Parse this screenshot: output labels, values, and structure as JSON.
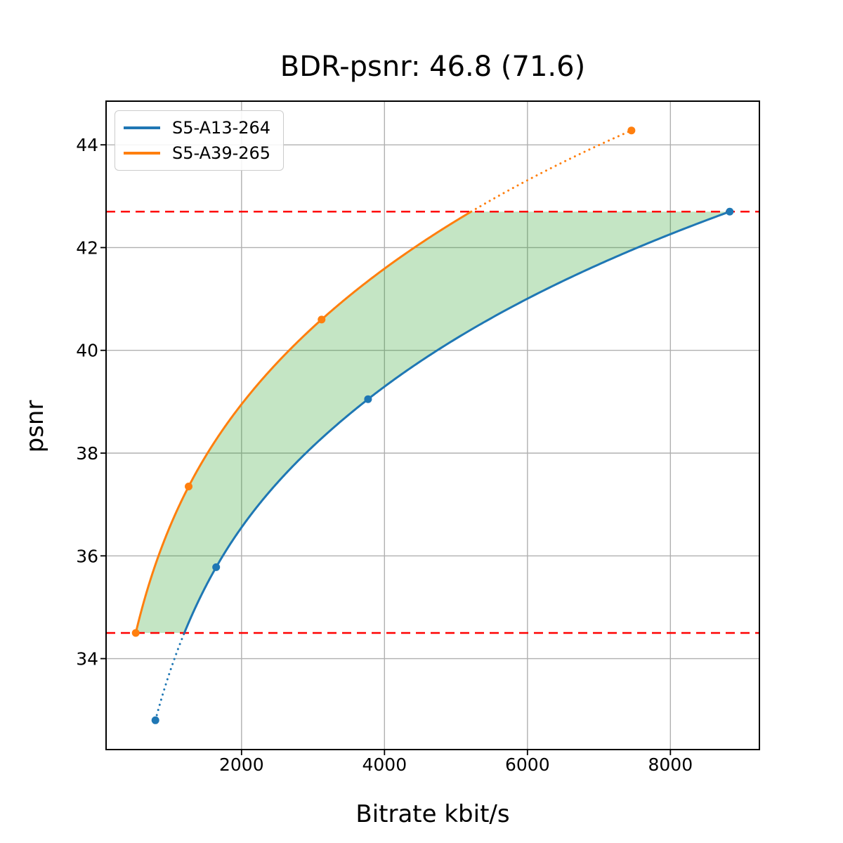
{
  "title": {
    "text": "BDR-psnr: 46.8 (71.6)"
  },
  "legend": {
    "items": [
      {
        "label": "S5-A13-264",
        "color": "#1f77b4"
      },
      {
        "label": "S5-A39-265",
        "color": "#ff7f0e"
      }
    ]
  },
  "chart_data": {
    "type": "line",
    "title": "BDR-psnr: 46.8 (71.6)",
    "xlabel": "Bitrate kbit/s",
    "ylabel": "psnr",
    "xlim": [
      105,
      9245
    ],
    "ylim": [
      32.23,
      44.85
    ],
    "xticks": [
      2000,
      4000,
      6000,
      8000
    ],
    "yticks": [
      34,
      36,
      38,
      40,
      42,
      44
    ],
    "grid": true,
    "grid_color": "#b0b0b0",
    "spine_color": "#000000",
    "legend_position": "upper left",
    "interpolation": "pchip-log-x",
    "series": [
      {
        "name": "S5-A13-264",
        "color": "#1f77b4",
        "marker": "circle",
        "x": [
          795,
          1645,
          3770,
          8830
        ],
        "y": [
          32.8,
          35.78,
          39.05,
          42.7
        ]
      },
      {
        "name": "S5-A39-265",
        "color": "#ff7f0e",
        "marker": "circle",
        "x": [
          520,
          1260,
          3120,
          7455
        ],
        "y": [
          34.5,
          37.35,
          40.6,
          44.28
        ]
      }
    ],
    "reference_lines": {
      "y": [
        34.5,
        42.7
      ],
      "color": "#ff0000",
      "style": "dashed"
    },
    "shaded_region": {
      "color": "#2ca02c",
      "opacity": 0.28,
      "clip_to_psnr_overlap": true
    }
  }
}
